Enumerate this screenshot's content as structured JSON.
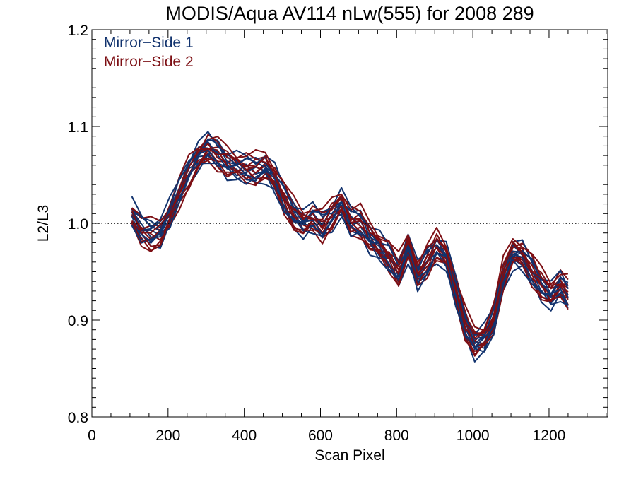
{
  "chart_data": {
    "type": "line",
    "title": "MODIS/Aqua AV114 nLw(555) for 2008 289",
    "xlabel": "Scan Pixel",
    "ylabel": "L2/L3",
    "xlim": [
      0,
      1354
    ],
    "ylim": [
      0.8,
      1.2
    ],
    "x_ticks": [
      0,
      200,
      400,
      600,
      800,
      1000,
      1200
    ],
    "x_tick_labels": [
      "0",
      "200",
      "400",
      "600",
      "800",
      "1000",
      "1200"
    ],
    "y_ticks": [
      0.8,
      0.9,
      1.0,
      1.1,
      1.2
    ],
    "y_tick_labels": [
      "0.8",
      "0.9",
      "1.0",
      "1.1",
      "1.2"
    ],
    "reference_line": {
      "y": 1.0,
      "style": "dotted"
    },
    "grid": false,
    "legend": {
      "position": "top-left"
    },
    "x": [
      105,
      130,
      155,
      180,
      205,
      230,
      255,
      280,
      305,
      330,
      355,
      380,
      405,
      430,
      455,
      480,
      505,
      530,
      555,
      580,
      605,
      630,
      655,
      680,
      705,
      730,
      755,
      780,
      805,
      830,
      855,
      880,
      905,
      930,
      955,
      980,
      1005,
      1030,
      1055,
      1080,
      1105,
      1130,
      1155,
      1180,
      1205,
      1230,
      1250
    ],
    "series": [
      {
        "name": "Mirror−Side 1",
        "color": "#12336e",
        "profile": [
          1.01,
          0.995,
          0.99,
          0.992,
          1.01,
          1.035,
          1.055,
          1.07,
          1.078,
          1.072,
          1.062,
          1.058,
          1.056,
          1.055,
          1.058,
          1.045,
          1.025,
          1.01,
          1.0,
          1.005,
          0.998,
          1.008,
          1.02,
          1.002,
          1.0,
          0.985,
          0.975,
          0.965,
          0.95,
          0.975,
          0.945,
          0.96,
          0.975,
          0.965,
          0.93,
          0.895,
          0.875,
          0.88,
          0.9,
          0.945,
          0.968,
          0.965,
          0.95,
          0.935,
          0.925,
          0.935,
          0.925
        ],
        "offsets": [
          -0.012,
          -0.007,
          -0.003,
          0.0,
          0.004,
          0.008,
          0.012,
          -0.01,
          0.006,
          -0.004
        ]
      },
      {
        "name": "Mirror−Side 2",
        "color": "#7d0f14",
        "profile": [
          1.008,
          0.993,
          0.988,
          0.99,
          1.008,
          1.033,
          1.053,
          1.068,
          1.078,
          1.072,
          1.064,
          1.06,
          1.058,
          1.057,
          1.06,
          1.047,
          1.027,
          1.01,
          1.0,
          1.005,
          0.998,
          1.01,
          1.022,
          1.003,
          1.002,
          0.987,
          0.977,
          0.967,
          0.952,
          0.977,
          0.947,
          0.962,
          0.978,
          0.967,
          0.932,
          0.897,
          0.878,
          0.882,
          0.903,
          0.948,
          0.972,
          0.968,
          0.953,
          0.938,
          0.928,
          0.938,
          0.93
        ],
        "offsets": [
          -0.011,
          -0.006,
          -0.002,
          0.001,
          0.005,
          0.009,
          -0.013,
          0.013,
          -0.008,
          0.003
        ]
      }
    ]
  }
}
